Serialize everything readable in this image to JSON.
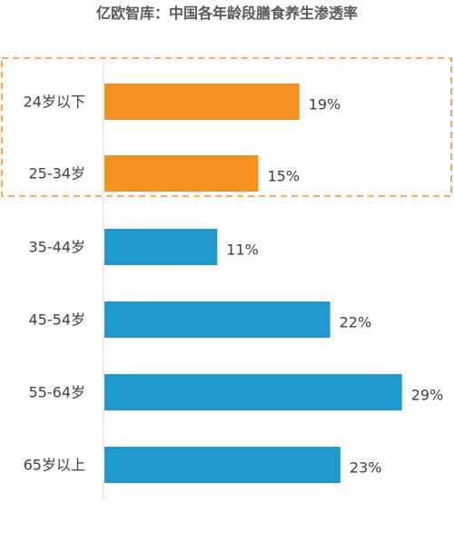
{
  "title": "亿欧智库：中国各年龄段膳食养生渗透率",
  "chart_data": {
    "type": "bar",
    "orientation": "horizontal",
    "title": "亿欧智库：中国各年龄段膳食养生渗透率",
    "categories": [
      "24岁以下",
      "25-34岁",
      "35-44岁",
      "45-54岁",
      "55-64岁",
      "65岁以上"
    ],
    "values": [
      19,
      15,
      11,
      22,
      29,
      23
    ],
    "data_labels": [
      "19%",
      "15%",
      "11%",
      "22%",
      "29%",
      "23%"
    ],
    "unit": "%",
    "xlim": [
      0,
      30
    ],
    "grid": false,
    "legend": "none",
    "highlighted_categories": [
      "24岁以下",
      "25-34岁"
    ],
    "colors": {
      "highlight": "#F5911E",
      "default": "#1E9AD0",
      "highlight_box": "#F5911E",
      "axis": "#D9D9D9"
    }
  }
}
